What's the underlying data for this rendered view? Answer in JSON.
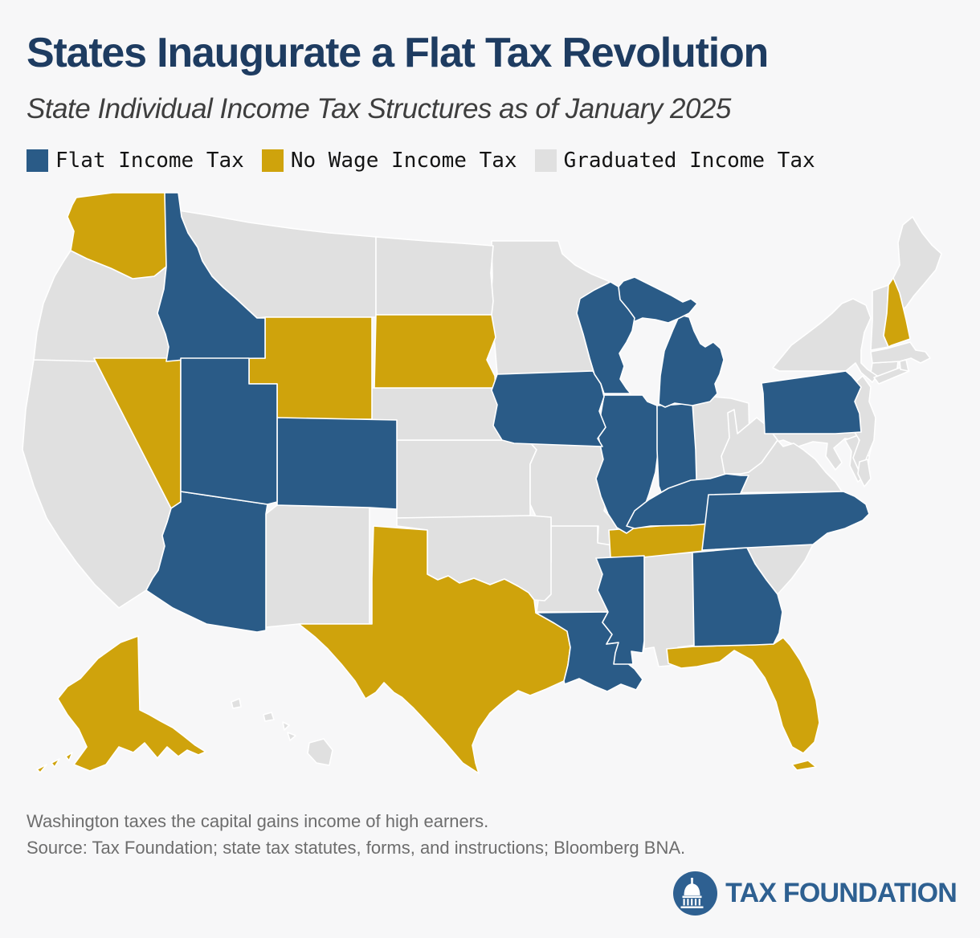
{
  "header": {
    "title": "States Inaugurate a Flat Tax Revolution",
    "subtitle": "State Individual Income Tax Structures as of January 2025"
  },
  "legend": {
    "items": [
      {
        "key": "flat",
        "label": "Flat Income Tax",
        "color": "#2a5b87"
      },
      {
        "key": "no_wage",
        "label": "No Wage Income Tax",
        "color": "#cfa30c"
      },
      {
        "key": "graduated",
        "label": "Graduated Income Tax",
        "color": "#e0e0e0"
      }
    ]
  },
  "notes": {
    "lines": [
      "Washington taxes the capital gains income of high earners.",
      "Source: Tax Foundation; state tax statutes, forms, and instructions; Bloomberg BNA."
    ]
  },
  "logo": {
    "text": "TAX FOUNDATION",
    "icon": "capitol-dome-icon",
    "color": "#2e6091"
  },
  "map": {
    "background": "#f7f7f8",
    "border_color": "#ffffff",
    "title_color": "#1e3c61"
  },
  "chart_data": {
    "type": "choropleth",
    "title": "States Inaugurate a Flat Tax Revolution",
    "subtitle": "State Individual Income Tax Structures as of January 2025",
    "legend": [
      {
        "key": "flat",
        "label": "Flat Income Tax",
        "color": "#2a5b87"
      },
      {
        "key": "no_wage",
        "label": "No Wage Income Tax",
        "color": "#cfa30c"
      },
      {
        "key": "graduated",
        "label": "Graduated Income Tax",
        "color": "#e0e0e0"
      }
    ],
    "states": [
      {
        "name": "Alabama",
        "abbr": "AL",
        "category": "graduated"
      },
      {
        "name": "Alaska",
        "abbr": "AK",
        "category": "no_wage"
      },
      {
        "name": "Arizona",
        "abbr": "AZ",
        "category": "flat"
      },
      {
        "name": "Arkansas",
        "abbr": "AR",
        "category": "graduated"
      },
      {
        "name": "California",
        "abbr": "CA",
        "category": "graduated"
      },
      {
        "name": "Colorado",
        "abbr": "CO",
        "category": "flat"
      },
      {
        "name": "Connecticut",
        "abbr": "CT",
        "category": "graduated"
      },
      {
        "name": "Delaware",
        "abbr": "DE",
        "category": "graduated"
      },
      {
        "name": "Florida",
        "abbr": "FL",
        "category": "no_wage"
      },
      {
        "name": "Georgia",
        "abbr": "GA",
        "category": "flat"
      },
      {
        "name": "Hawaii",
        "abbr": "HI",
        "category": "graduated"
      },
      {
        "name": "Idaho",
        "abbr": "ID",
        "category": "flat"
      },
      {
        "name": "Illinois",
        "abbr": "IL",
        "category": "flat"
      },
      {
        "name": "Indiana",
        "abbr": "IN",
        "category": "flat"
      },
      {
        "name": "Iowa",
        "abbr": "IA",
        "category": "flat"
      },
      {
        "name": "Kansas",
        "abbr": "KS",
        "category": "graduated"
      },
      {
        "name": "Kentucky",
        "abbr": "KY",
        "category": "flat"
      },
      {
        "name": "Louisiana",
        "abbr": "LA",
        "category": "flat"
      },
      {
        "name": "Maine",
        "abbr": "ME",
        "category": "graduated"
      },
      {
        "name": "Maryland",
        "abbr": "MD",
        "category": "graduated"
      },
      {
        "name": "Massachusetts",
        "abbr": "MA",
        "category": "graduated"
      },
      {
        "name": "Michigan",
        "abbr": "MI",
        "category": "flat"
      },
      {
        "name": "Minnesota",
        "abbr": "MN",
        "category": "graduated"
      },
      {
        "name": "Mississippi",
        "abbr": "MS",
        "category": "flat"
      },
      {
        "name": "Missouri",
        "abbr": "MO",
        "category": "graduated"
      },
      {
        "name": "Montana",
        "abbr": "MT",
        "category": "graduated"
      },
      {
        "name": "Nebraska",
        "abbr": "NE",
        "category": "graduated"
      },
      {
        "name": "Nevada",
        "abbr": "NV",
        "category": "no_wage"
      },
      {
        "name": "New Hampshire",
        "abbr": "NH",
        "category": "no_wage"
      },
      {
        "name": "New Jersey",
        "abbr": "NJ",
        "category": "graduated"
      },
      {
        "name": "New Mexico",
        "abbr": "NM",
        "category": "graduated"
      },
      {
        "name": "New York",
        "abbr": "NY",
        "category": "graduated"
      },
      {
        "name": "North Carolina",
        "abbr": "NC",
        "category": "flat"
      },
      {
        "name": "North Dakota",
        "abbr": "ND",
        "category": "graduated"
      },
      {
        "name": "Ohio",
        "abbr": "OH",
        "category": "graduated"
      },
      {
        "name": "Oklahoma",
        "abbr": "OK",
        "category": "graduated"
      },
      {
        "name": "Oregon",
        "abbr": "OR",
        "category": "graduated"
      },
      {
        "name": "Pennsylvania",
        "abbr": "PA",
        "category": "flat"
      },
      {
        "name": "Rhode Island",
        "abbr": "RI",
        "category": "graduated"
      },
      {
        "name": "South Carolina",
        "abbr": "SC",
        "category": "graduated"
      },
      {
        "name": "South Dakota",
        "abbr": "SD",
        "category": "no_wage"
      },
      {
        "name": "Tennessee",
        "abbr": "TN",
        "category": "no_wage"
      },
      {
        "name": "Texas",
        "abbr": "TX",
        "category": "no_wage"
      },
      {
        "name": "Utah",
        "abbr": "UT",
        "category": "flat"
      },
      {
        "name": "Vermont",
        "abbr": "VT",
        "category": "graduated"
      },
      {
        "name": "Virginia",
        "abbr": "VA",
        "category": "graduated"
      },
      {
        "name": "Washington",
        "abbr": "WA",
        "category": "no_wage"
      },
      {
        "name": "West Virginia",
        "abbr": "WV",
        "category": "graduated"
      },
      {
        "name": "Wisconsin",
        "abbr": "WI",
        "category": "flat"
      },
      {
        "name": "Wyoming",
        "abbr": "WY",
        "category": "no_wage"
      }
    ]
  }
}
